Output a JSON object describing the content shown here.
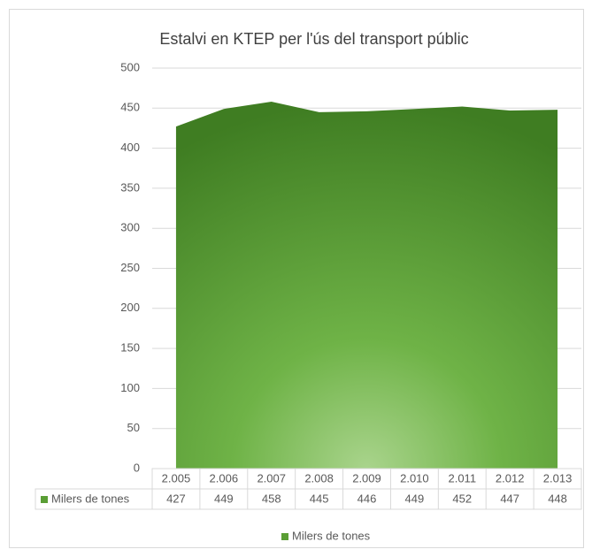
{
  "chart_data": {
    "type": "area",
    "title": "Estalvi en KTEP per l'ús del transport públic",
    "categories": [
      "2.005",
      "2.006",
      "2.007",
      "2.008",
      "2.009",
      "2.010",
      "2.011",
      "2.012",
      "2.013"
    ],
    "series": [
      {
        "name": "Milers de tones",
        "color": "#5a9e35",
        "values": [
          427,
          449,
          458,
          445,
          446,
          449,
          452,
          447,
          448
        ]
      }
    ],
    "ylim": [
      0,
      500
    ],
    "yticks": [
      0,
      50,
      100,
      150,
      200,
      250,
      300,
      350,
      400,
      450,
      500
    ],
    "grid": true,
    "legend": "bottom"
  }
}
